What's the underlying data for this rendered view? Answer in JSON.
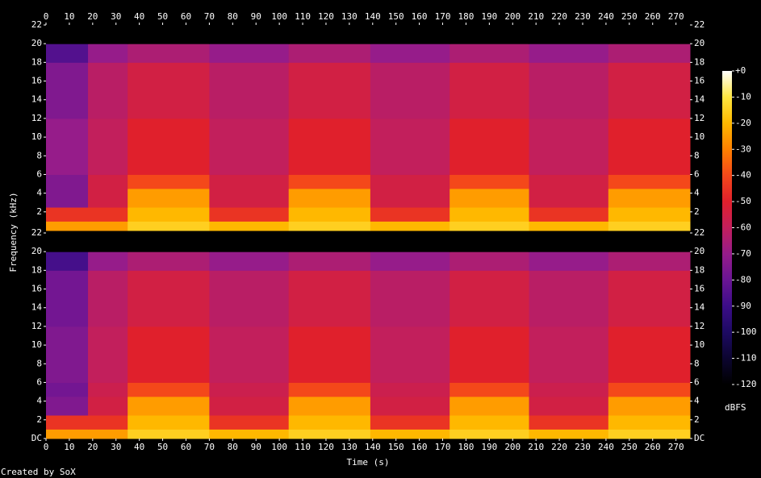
{
  "chart_data": {
    "type": "spectrogram",
    "xlabel": "Time (s)",
    "ylabel": "Frequency (kHz)",
    "footer": "Created by SoX",
    "colorbar_label": "dBFS",
    "xlim": [
      0,
      276
    ],
    "xticks": [
      0,
      10,
      20,
      30,
      40,
      50,
      60,
      70,
      80,
      90,
      100,
      110,
      120,
      130,
      140,
      150,
      160,
      170,
      180,
      190,
      200,
      210,
      220,
      230,
      240,
      250,
      260,
      270
    ],
    "ylim": [
      0,
      22
    ],
    "zlim": [
      -120,
      0
    ],
    "zticks": [
      {
        "value": 0,
        "label": "+0"
      },
      -10,
      -20,
      -30,
      -40,
      -50,
      -60,
      -70,
      -80,
      -90,
      -100,
      -110,
      -120
    ],
    "colorscale": [
      "#000000",
      "#0c0530",
      "#1d0a63",
      "#3c0d88",
      "#6a1594",
      "#961c8a",
      "#c21f5c",
      "#e0202c",
      "#f4481a",
      "#ff8000",
      "#ffb800",
      "#ffe640",
      "#ffffff"
    ],
    "time_edges": [
      0,
      18,
      35,
      70,
      104,
      139,
      173,
      207,
      241,
      276
    ],
    "freq_edges": [
      0,
      1,
      2.5,
      4.5,
      6,
      12,
      18,
      20,
      22
    ],
    "channels": [
      {
        "yticks": [
          2,
          4,
          6,
          8,
          10,
          12,
          14,
          16,
          18,
          20,
          22
        ],
        "z": [
          [
            -25,
            -25,
            -15,
            -20,
            -15,
            -20,
            -15,
            -20,
            -15
          ],
          [
            -45,
            -45,
            -20,
            -45,
            -20,
            -45,
            -20,
            -45,
            -20
          ],
          [
            -75,
            -55,
            -25,
            -55,
            -25,
            -55,
            -25,
            -55,
            -25
          ],
          [
            -75,
            -55,
            -40,
            -55,
            -40,
            -55,
            -40,
            -55,
            -40
          ],
          [
            -70,
            -60,
            -50,
            -60,
            -50,
            -60,
            -50,
            -60,
            -50
          ],
          [
            -75,
            -62,
            -55,
            -62,
            -55,
            -62,
            -55,
            -62,
            -55
          ],
          [
            -85,
            -70,
            -65,
            -70,
            -65,
            -70,
            -65,
            -70,
            -65
          ],
          [
            -120,
            -120,
            -120,
            -120,
            -120,
            -120,
            -120,
            -120,
            -120
          ]
        ]
      },
      {
        "yticks": [
          {
            "value": 0,
            "label": "DC"
          },
          2,
          4,
          6,
          8,
          10,
          12,
          14,
          16,
          18,
          20,
          22
        ],
        "z": [
          [
            -25,
            -25,
            -15,
            -20,
            -15,
            -20,
            -15,
            -20,
            -15
          ],
          [
            -45,
            -45,
            -20,
            -45,
            -20,
            -45,
            -20,
            -45,
            -20
          ],
          [
            -75,
            -55,
            -25,
            -55,
            -25,
            -55,
            -25,
            -55,
            -25
          ],
          [
            -78,
            -57,
            -40,
            -57,
            -40,
            -57,
            -40,
            -57,
            -40
          ],
          [
            -75,
            -60,
            -50,
            -60,
            -50,
            -60,
            -50,
            -60,
            -50
          ],
          [
            -78,
            -62,
            -55,
            -62,
            -55,
            -62,
            -55,
            -62,
            -55
          ],
          [
            -88,
            -70,
            -65,
            -70,
            -65,
            -70,
            -65,
            -70,
            -65
          ],
          [
            -120,
            -120,
            -120,
            -120,
            -120,
            -120,
            -120,
            -120,
            -120
          ]
        ]
      }
    ]
  }
}
